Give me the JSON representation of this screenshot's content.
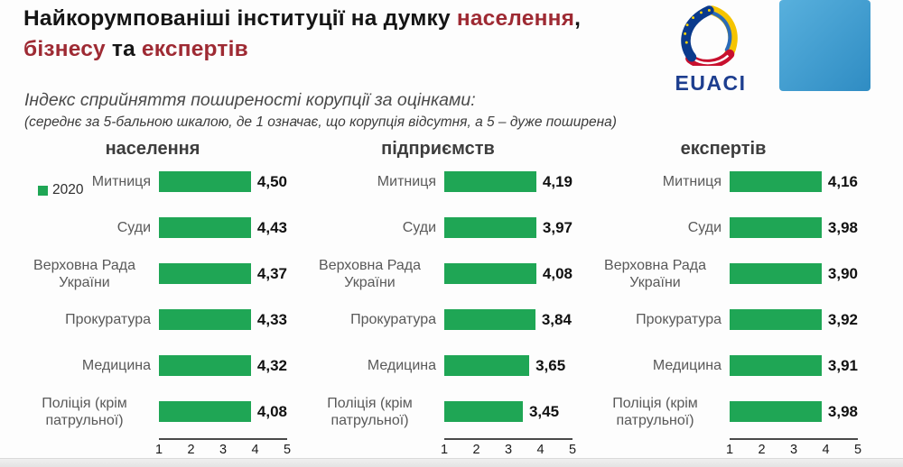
{
  "slide": {
    "title": {
      "l1_black": "Найкорумпованіші інституції на думку ",
      "l1_red": "населення",
      "l1_tail": ",",
      "l2_red1": "бізнесу",
      "l2_mid": " та ",
      "l2_red2": "експертів"
    },
    "subtitle": "Індекс сприйняття поширеності корупції за оцінками:",
    "subtitle_note": "(середнє за 5-бальною шкалою, де 1 означає, що корупція відсутня, а 5 – дуже поширена)",
    "logos": {
      "euaci_label": "EUACI",
      "euaci_icon": "euaci-triangle-logo",
      "partner_icon": "waveform-bars-logo"
    },
    "colors": {
      "title_red": "#9e2a33",
      "bar_green": "#1fa655",
      "euaci_blue": "#1d3e8f"
    }
  },
  "chart_data": {
    "type": "bar",
    "orientation": "horizontal",
    "title": "Індекс сприйняття поширеності корупції за оцінками",
    "categories": [
      "Митниця",
      "Суди",
      "Верховна Рада України",
      "Прокуратура",
      "Медицина",
      "Поліція (крім патрульної)"
    ],
    "series": [
      {
        "name": "населення",
        "values": [
          4.5,
          4.43,
          4.37,
          4.33,
          4.32,
          4.08
        ],
        "labels": [
          "4,50",
          "4,43",
          "4,37",
          "4,33",
          "4,32",
          "4,08"
        ]
      },
      {
        "name": "підприємств",
        "values": [
          4.19,
          3.97,
          4.08,
          3.84,
          3.65,
          3.45
        ],
        "labels": [
          "4,19",
          "3,97",
          "4,08",
          "3,84",
          "3,65",
          "3,45"
        ]
      },
      {
        "name": "експертів",
        "values": [
          4.16,
          3.98,
          3.9,
          3.92,
          3.91,
          3.98
        ],
        "labels": [
          "4,16",
          "3,98",
          "3,90",
          "3,92",
          "3,91",
          "3,98"
        ]
      }
    ],
    "xlim": [
      1,
      5
    ],
    "x_ticks": [
      "1",
      "2",
      "3",
      "4",
      "5"
    ],
    "legend": [
      "2020"
    ],
    "legend_position": "left",
    "grid": false,
    "bar_color": "#1fa655"
  }
}
